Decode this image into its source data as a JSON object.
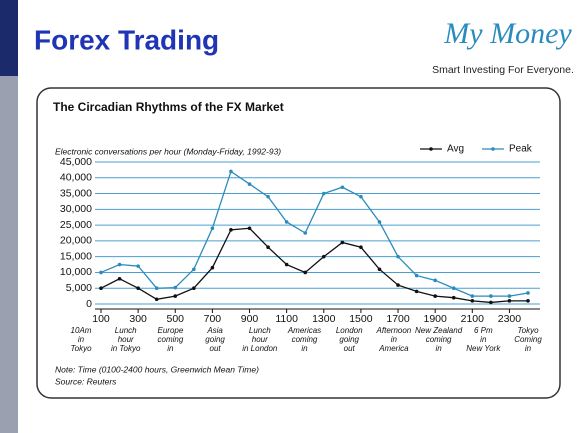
{
  "header": {
    "title": "Forex Trading",
    "logo": "My Money",
    "tagline": "Smart Investing For Everyone."
  },
  "chart_data": {
    "type": "line",
    "title": "The Circadian Rhythms of the FX Market",
    "subtitle": "Electronic conversations per hour (Monday-Friday, 1992-93)",
    "x": [
      100,
      200,
      300,
      400,
      500,
      600,
      700,
      800,
      900,
      1000,
      1100,
      1200,
      1300,
      1400,
      1500,
      1600,
      1700,
      1800,
      1900,
      2000,
      2100,
      2200,
      2300,
      2400
    ],
    "series": [
      {
        "name": "Avg",
        "color": "#111111",
        "values": [
          5000,
          8000,
          5000,
          1500,
          2500,
          5000,
          11500,
          23500,
          24000,
          18000,
          12500,
          10000,
          15000,
          19500,
          18000,
          11000,
          6000,
          4000,
          2500,
          2000,
          1000,
          500,
          1000,
          1000
        ]
      },
      {
        "name": "Peak",
        "color": "#2a8bbd",
        "values": [
          10000,
          12500,
          12000,
          5000,
          5200,
          11000,
          24000,
          42000,
          38000,
          34000,
          26000,
          22500,
          35000,
          37000,
          34000,
          26000,
          15000,
          9000,
          7500,
          5000,
          2500,
          2500,
          2500,
          3500
        ]
      }
    ],
    "xlim": [
      100,
      2400
    ],
    "xticks": [
      100,
      300,
      500,
      700,
      900,
      1100,
      1300,
      1500,
      1700,
      1900,
      2100,
      2300
    ],
    "ylim": [
      0,
      45000
    ],
    "yticks": [
      0,
      {
        "value": 5000,
        "label": "5,000"
      },
      {
        "value": 10000,
        "label": "10,000"
      },
      {
        "value": 15000,
        "label": "15,000"
      },
      {
        "value": 20000,
        "label": "20,000"
      },
      {
        "value": 25000,
        "label": "25,000"
      },
      {
        "value": 30000,
        "label": "30,000"
      },
      {
        "value": 35000,
        "label": "35,000"
      },
      {
        "value": 40000,
        "label": "40,000"
      },
      {
        "value": 45000,
        "label": "45,000"
      }
    ],
    "grid": true,
    "legend": "top-right",
    "annotations": [
      [
        "10Am",
        "in",
        "Tokyo"
      ],
      [
        "Lunch",
        "hour",
        "in Tokyo"
      ],
      [
        "Europe",
        "coming",
        "in"
      ],
      [
        "Asia",
        "going",
        "out"
      ],
      [
        "Lunch",
        "hour",
        "in London"
      ],
      [
        "Americas",
        "coming",
        "in"
      ],
      [
        "London",
        "going",
        "out"
      ],
      [
        "Afternoon",
        "in",
        "America"
      ],
      [
        "New Zealand",
        "coming",
        "in"
      ],
      [
        "6 Pm",
        "in",
        "New York"
      ],
      [
        "Tokyo",
        "Coming",
        "in"
      ]
    ],
    "notes": [
      "Note: Time (0100-2400 hours, Greenwich Mean Time)",
      "Source: Reuters"
    ]
  }
}
